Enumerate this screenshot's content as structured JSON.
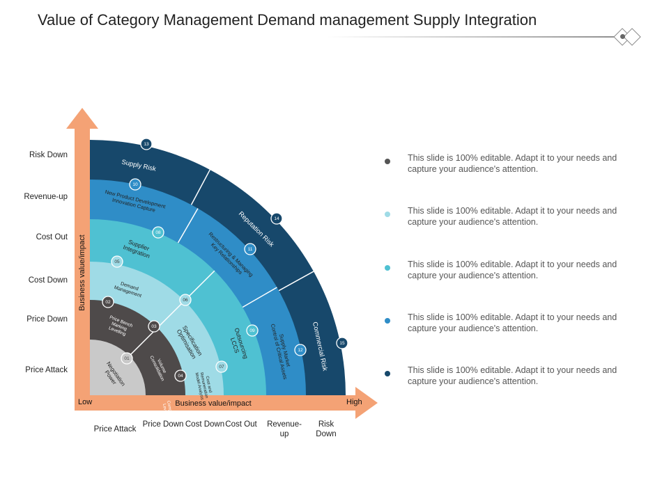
{
  "title": "Value of Category Management Demand management Supply Integration",
  "colors": {
    "arrow": "#f4a275",
    "ring_supply_risk": "#17486b",
    "ring_npd": "#2f8dc7",
    "ring_supplier": "#4fc1d2",
    "ring_demand": "#9fdbe6",
    "ring_price": "#4e4a4a",
    "ring_core": "#c9c9c9",
    "badge_fill": "#ffffff"
  },
  "y_axis": {
    "title": "Business value/impact",
    "labels": [
      "Risk Down",
      "Revenue-up",
      "Cost Out",
      "Cost Down",
      "Price Down",
      "Price Attack"
    ]
  },
  "x_axis": {
    "title": "Business value/impact",
    "low": "Low",
    "high": "High",
    "labels": [
      "Price Attack",
      "Price Down",
      "Cost Down",
      "Cost Out",
      "Revenue- up",
      "Risk Down"
    ]
  },
  "segments": [
    {
      "num": "01",
      "label": "Negotiation Power"
    },
    {
      "num": "02",
      "label": "Price Bench Marking Levelling"
    },
    {
      "num": "03",
      "label": "Volume Consolidation"
    },
    {
      "num": "04",
      "label": "Competitive Leverage"
    },
    {
      "num": "05",
      "label": "Demand Management"
    },
    {
      "num": "06",
      "label": "Specification Optimisation"
    },
    {
      "num": "07",
      "label": "Cost and Remuneration Model Analysis"
    },
    {
      "num": "08",
      "label": "Supplier Integration"
    },
    {
      "num": "09",
      "label": "Outsourcing LCCS"
    },
    {
      "num": "10",
      "label": "New Product Development Innovation Capture"
    },
    {
      "num": "11",
      "label": "Restructuring & Managing Key Relationships"
    },
    {
      "num": "12",
      "label": "Supply Market Control of Critical Assets"
    },
    {
      "num": "13",
      "label": "Supply Risk"
    },
    {
      "num": "14",
      "label": "Reputation Risk"
    },
    {
      "num": "15",
      "label": "Commercial Risk"
    }
  ],
  "legend": [
    {
      "text": "This slide is 100% editable. Adapt it to your needs and capture your audience's attention.",
      "color": "#555555"
    },
    {
      "text": "This slide is 100% editable. Adapt it to your needs and capture your audience's attention.",
      "color": "#9fdbe6"
    },
    {
      "text": "This slide is 100% editable. Adapt it to your needs and capture your audience's attention.",
      "color": "#4fc1d2"
    },
    {
      "text": "This slide is 100% editable. Adapt it to your needs and capture your audience's attention.",
      "color": "#2f8dc7"
    },
    {
      "text": "This slide is 100% editable. Adapt it to your needs and capture your audience's attention.",
      "color": "#17486b"
    }
  ]
}
